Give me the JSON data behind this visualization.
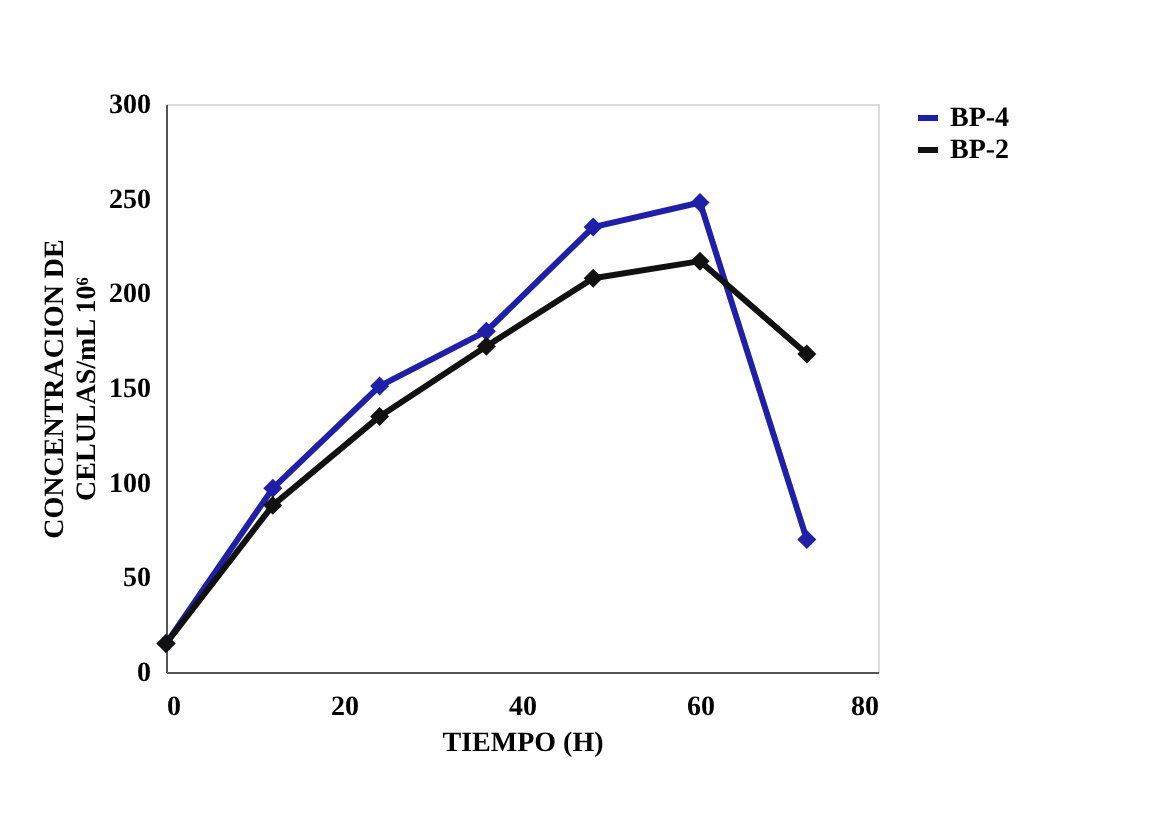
{
  "chart_data": {
    "type": "line",
    "xlabel": "TIEMPO (H)",
    "ylabel": "CONCENTRACION DE\nCELULAS/mL 10⁶",
    "x": [
      0,
      12,
      24,
      36,
      48,
      60,
      72
    ],
    "series": [
      {
        "name": "BP-4",
        "color": "#1f1fa8",
        "values": [
          15,
          97,
          151,
          180,
          235,
          248,
          70
        ]
      },
      {
        "name": "BP-2",
        "color": "#111111",
        "values": [
          15,
          88,
          135,
          172,
          208,
          217,
          168
        ]
      }
    ],
    "xlim": [
      0,
      80
    ],
    "xticks": [
      0,
      20,
      40,
      60,
      80
    ],
    "ylim": [
      0,
      300
    ],
    "yticks": [
      0,
      50,
      100,
      150,
      200,
      250,
      300
    ],
    "grid": false,
    "legend": "right",
    "marker": "diamond",
    "line_style": "solid"
  }
}
